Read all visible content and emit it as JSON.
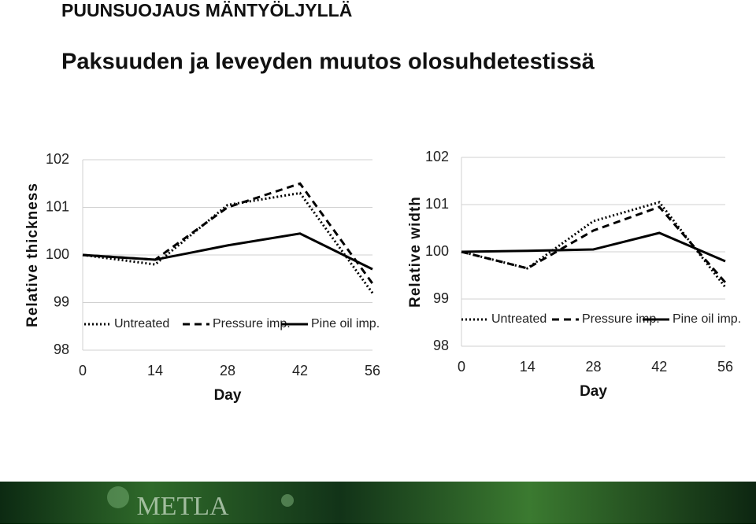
{
  "title": "PUUNSUOJAUS MÄNTYÖLJYLLÄ",
  "subtitle": "Paksuuden ja leveyden muutos olosuhdetestissä",
  "logo": "METLA",
  "chart_data": [
    {
      "type": "line",
      "xlabel": "Day",
      "ylabel": "Relative thickness",
      "x": [
        0,
        14,
        28,
        42,
        56
      ],
      "xlim": [
        0,
        56
      ],
      "xticks": [
        0,
        14,
        28,
        42,
        56
      ],
      "ylim": [
        98,
        102
      ],
      "yticks": [
        98,
        99,
        100,
        101,
        102
      ],
      "grid": true,
      "legend": "bottom",
      "series": [
        {
          "name": "Untreated",
          "color": "#000000",
          "dash": "dotted",
          "values": [
            100,
            99.8,
            101.05,
            101.3,
            99.2
          ]
        },
        {
          "name": "Pressure imp.",
          "color": "#000000",
          "dash": "dashed",
          "values": [
            100,
            99.9,
            101.0,
            101.5,
            99.4
          ]
        },
        {
          "name": "Pine oil imp.",
          "color": "#000000",
          "dash": "solid",
          "values": [
            100,
            99.9,
            100.2,
            100.45,
            99.7
          ]
        }
      ]
    },
    {
      "type": "line",
      "xlabel": "Day",
      "ylabel": "Relative width",
      "x": [
        0,
        14,
        28,
        42,
        56
      ],
      "xlim": [
        0,
        56
      ],
      "xticks": [
        0,
        14,
        28,
        42,
        56
      ],
      "ylim": [
        98,
        102
      ],
      "yticks": [
        98,
        99,
        100,
        101,
        102
      ],
      "grid": true,
      "legend": "bottom",
      "series": [
        {
          "name": "Untreated",
          "color": "#000000",
          "dash": "dotted",
          "values": [
            100,
            99.65,
            100.65,
            101.05,
            99.25
          ]
        },
        {
          "name": "Pressure imp.",
          "color": "#000000",
          "dash": "dashed",
          "values": [
            100,
            99.65,
            100.45,
            100.95,
            99.35
          ]
        },
        {
          "name": "Pine oil imp.",
          "color": "#000000",
          "dash": "solid",
          "values": [
            100,
            100.02,
            100.05,
            100.4,
            99.8
          ]
        }
      ]
    }
  ]
}
